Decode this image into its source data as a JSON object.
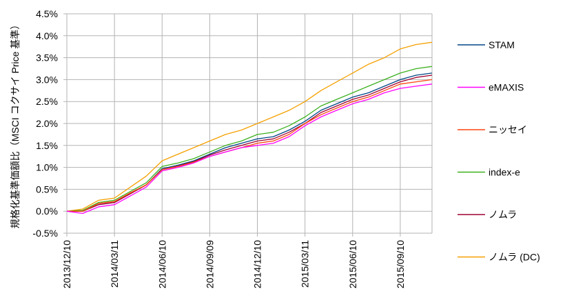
{
  "chart_data": {
    "type": "line",
    "title": "",
    "xlabel": "",
    "ylabel": "規格化基準価額比（MSCI コクサイ Price 基準）",
    "ylim": [
      -0.5,
      4.5
    ],
    "y_ticks": [
      "4.5%",
      "4.0%",
      "3.5%",
      "3.0%",
      "2.5%",
      "2.0%",
      "1.5%",
      "1.0%",
      "0.5%",
      "0.0%",
      "-0.5%"
    ],
    "y_tick_values": [
      4.5,
      4.0,
      3.5,
      3.0,
      2.5,
      2.0,
      1.5,
      1.0,
      0.5,
      0.0,
      -0.5
    ],
    "x_ticks": [
      "2013/12/10",
      "2014/03/11",
      "2014/06/10",
      "2014/09/09",
      "2014/12/10",
      "2015/03/11",
      "2015/06/10",
      "2015/09/10"
    ],
    "x_tick_index": [
      0,
      3,
      6,
      9,
      12,
      15,
      18,
      21
    ],
    "grid": true,
    "legend_position": "right",
    "x": [
      "2013/12/10",
      "2014/01/10",
      "2014/02/10",
      "2014/03/11",
      "2014/04/10",
      "2014/05/09",
      "2014/06/10",
      "2014/07/10",
      "2014/08/08",
      "2014/09/09",
      "2014/10/10",
      "2014/11/10",
      "2014/12/10",
      "2015/01/09",
      "2015/02/10",
      "2015/03/11",
      "2015/04/10",
      "2015/05/11",
      "2015/06/10",
      "2015/07/10",
      "2015/08/10",
      "2015/09/10",
      "2015/10/09",
      "2015/11/10"
    ],
    "series": [
      {
        "name": "STAM",
        "color": "#004586",
        "values": [
          0,
          0.0,
          0.15,
          0.2,
          0.4,
          0.6,
          0.97,
          1.05,
          1.15,
          1.3,
          1.45,
          1.55,
          1.65,
          1.7,
          1.85,
          2.05,
          2.3,
          2.45,
          2.6,
          2.7,
          2.85,
          3.0,
          3.1,
          3.15
        ]
      },
      {
        "name": "eMAXIS",
        "color": "#ff00ff",
        "values": [
          0,
          -0.05,
          0.1,
          0.15,
          0.35,
          0.55,
          0.92,
          1.0,
          1.1,
          1.25,
          1.35,
          1.45,
          1.5,
          1.55,
          1.7,
          1.95,
          2.15,
          2.3,
          2.45,
          2.55,
          2.7,
          2.8,
          2.85,
          2.9
        ]
      },
      {
        "name": "ニッセイ",
        "color": "#ff420e",
        "values": [
          0,
          0.0,
          0.18,
          0.22,
          0.42,
          0.6,
          0.95,
          1.02,
          1.12,
          1.25,
          1.35,
          1.45,
          1.55,
          1.6,
          1.75,
          2.0,
          2.2,
          2.35,
          2.5,
          2.6,
          2.75,
          2.9,
          2.95,
          3.0
        ]
      },
      {
        "name": "index-e",
        "color": "#3cb01e",
        "values": [
          0,
          0.02,
          0.2,
          0.25,
          0.45,
          0.65,
          1.02,
          1.1,
          1.2,
          1.35,
          1.5,
          1.6,
          1.75,
          1.8,
          1.95,
          2.15,
          2.4,
          2.55,
          2.7,
          2.85,
          3.0,
          3.15,
          3.25,
          3.3
        ]
      },
      {
        "name": "ノムラ",
        "color": "#a00030",
        "values": [
          0,
          0.0,
          0.15,
          0.2,
          0.4,
          0.6,
          0.95,
          1.03,
          1.13,
          1.28,
          1.4,
          1.5,
          1.6,
          1.65,
          1.8,
          2.0,
          2.25,
          2.4,
          2.55,
          2.65,
          2.8,
          2.95,
          3.05,
          3.1
        ]
      },
      {
        "name": "ノムラ (DC)",
        "color": "#f5a000",
        "values": [
          0,
          0.05,
          0.25,
          0.3,
          0.55,
          0.8,
          1.15,
          1.3,
          1.45,
          1.6,
          1.75,
          1.85,
          2.0,
          2.15,
          2.3,
          2.5,
          2.75,
          2.95,
          3.15,
          3.35,
          3.5,
          3.7,
          3.8,
          3.85
        ]
      }
    ]
  }
}
